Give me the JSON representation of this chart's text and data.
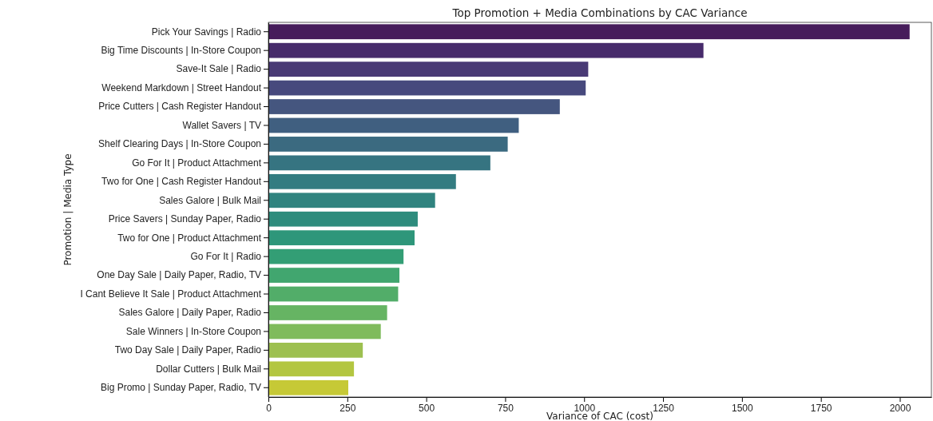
{
  "chart_data": {
    "type": "bar",
    "orientation": "horizontal",
    "title": "Top Promotion + Media Combinations by CAC Variance",
    "xlabel": "Variance of CAC (cost)",
    "ylabel": "Promotion | Media Type",
    "categories": [
      "Pick Your Savings | Radio",
      "Big Time Discounts | In-Store Coupon",
      "Save-It Sale | Radio",
      "Weekend Markdown | Street Handout",
      "Price Cutters | Cash Register Handout",
      "Wallet Savers | TV",
      "Shelf Clearing Days | In-Store Coupon",
      "Go For It | Product Attachment",
      "Two for One | Cash Register Handout",
      "Sales Galore | Bulk Mail",
      "Price Savers | Sunday Paper, Radio",
      "Two for One | Product Attachment",
      "Go For It | Radio",
      "One Day Sale | Daily Paper, Radio, TV",
      "I Cant Believe It Sale | Product Attachment",
      "Sales Galore | Daily Paper, Radio",
      "Sale Winners | In-Store Coupon",
      "Two Day Sale | Daily Paper, Radio",
      "Dollar Cutters | Bulk Mail",
      "Big Promo | Sunday Paper, Radio, TV"
    ],
    "values": [
      2031,
      1378,
      1013,
      1005,
      923,
      793,
      758,
      703,
      594,
      528,
      473,
      463,
      428,
      415,
      411,
      376,
      356,
      299,
      271,
      253
    ],
    "colors": [
      "#461c5b",
      "#472b6b",
      "#493a75",
      "#47497d",
      "#45567f",
      "#405f80",
      "#3b6a80",
      "#367481",
      "#337c81",
      "#30837f",
      "#2e8c7d",
      "#2e967a",
      "#339e75",
      "#41a66f",
      "#52ad69",
      "#66b463",
      "#7fbb5c",
      "#9dc050",
      "#b3c641",
      "#c6c936"
    ],
    "xlim": [
      0,
      2100
    ],
    "xticks": [
      0,
      250,
      500,
      750,
      1000,
      1250,
      1500,
      1750,
      2000
    ]
  }
}
